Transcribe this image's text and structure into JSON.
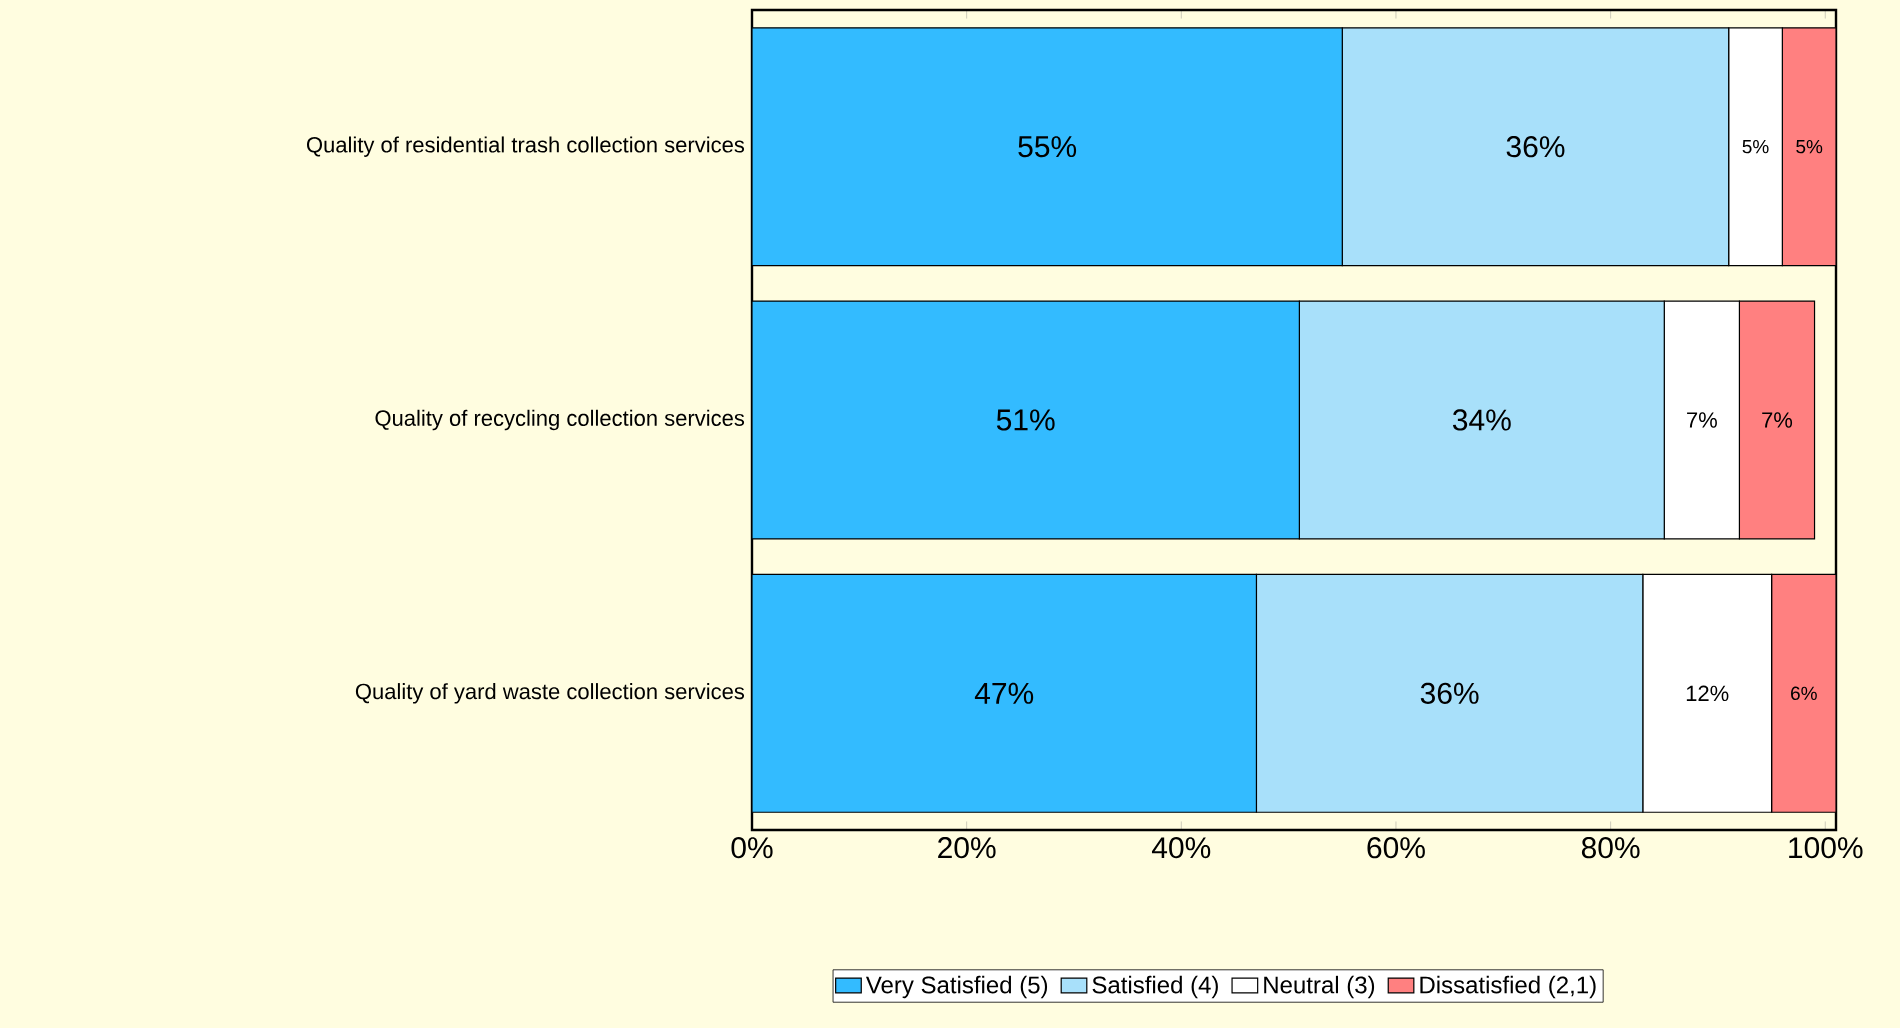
{
  "chart_data": {
    "type": "bar",
    "orientation": "horizontal",
    "stacked": true,
    "categories": [
      "Quality of residential trash collection services",
      "Quality of recycling collection services",
      "Quality of yard waste collection services"
    ],
    "series": [
      {
        "name": "Very Satisfied (5)",
        "color": "#33bbff",
        "values": [
          55,
          51,
          47
        ],
        "value_labels": [
          "55%",
          "51%",
          "47%"
        ]
      },
      {
        "name": "Satisfied (4)",
        "color": "#a8e0fa",
        "values": [
          36,
          34,
          36
        ],
        "value_labels": [
          "36%",
          "34%",
          "36%"
        ]
      },
      {
        "name": "Neutral (3)",
        "color": "#ffffff",
        "values": [
          5,
          7,
          12
        ],
        "value_labels": [
          "5%",
          "7%",
          "12%"
        ]
      },
      {
        "name": "Dissatisfied (2,1)",
        "color": "#ff8080",
        "values": [
          5,
          7,
          6
        ],
        "value_labels": [
          "5%",
          "7%",
          "6%"
        ]
      }
    ],
    "xlim": [
      0,
      101
    ],
    "xticks": [
      {
        "value": 0,
        "label": "0%"
      },
      {
        "value": 20,
        "label": "20%"
      },
      {
        "value": 40,
        "label": "40%"
      },
      {
        "value": 60,
        "label": "60%"
      },
      {
        "value": 80,
        "label": "80%"
      },
      {
        "value": 100,
        "label": "100%"
      }
    ],
    "legend": "bottom"
  }
}
